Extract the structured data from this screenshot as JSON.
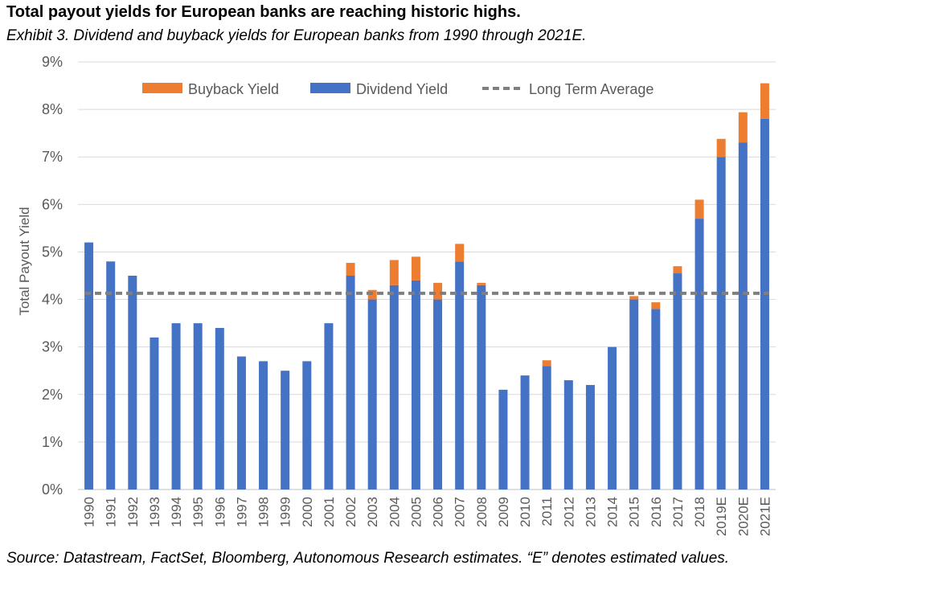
{
  "title": "Total payout yields for European banks are reaching historic highs.",
  "subtitle": "Exhibit 3. Dividend and buyback yields for European banks from 1990 through 2021E.",
  "source": "Source: Datastream, FactSet, Bloomberg, Autonomous Research estimates. “E” denotes estimated values.",
  "colors": {
    "dividend": "#4472C4",
    "buyback": "#ED7D31",
    "average": "#7F7F7F",
    "grid": "#D9D9D9",
    "text": "#595959"
  },
  "chart_data": {
    "type": "bar",
    "stacked": true,
    "ylabel": "Total Payout Yield",
    "ylim": [
      0,
      9
    ],
    "yticks": [
      "0%",
      "1%",
      "2%",
      "3%",
      "4%",
      "5%",
      "6%",
      "7%",
      "8%",
      "9%"
    ],
    "grid": true,
    "legend_position": "top",
    "categories": [
      "1990",
      "1991",
      "1992",
      "1993",
      "1994",
      "1995",
      "1996",
      "1997",
      "1998",
      "1999",
      "2000",
      "2001",
      "2002",
      "2003",
      "2004",
      "2005",
      "2006",
      "2007",
      "2008",
      "2009",
      "2010",
      "2011",
      "2012",
      "2013",
      "2014",
      "2015",
      "2016",
      "2017",
      "2018",
      "2019E",
      "2020E",
      "2021E"
    ],
    "series": [
      {
        "name": "Dividend Yield",
        "values": [
          5.2,
          4.8,
          4.5,
          3.2,
          3.5,
          3.5,
          3.4,
          2.8,
          2.7,
          2.5,
          2.7,
          3.5,
          4.5,
          4.0,
          4.3,
          4.4,
          4.0,
          4.8,
          4.3,
          2.1,
          2.4,
          2.6,
          2.3,
          2.2,
          3.0,
          4.0,
          3.8,
          4.55,
          5.7,
          7.0,
          7.3,
          7.8
        ]
      },
      {
        "name": "Buyback Yield",
        "values": [
          0,
          0,
          0,
          0,
          0,
          0,
          0,
          0,
          0,
          0,
          0,
          0,
          0.27,
          0.2,
          0.53,
          0.5,
          0.35,
          0.37,
          0.05,
          0,
          0,
          0.12,
          0,
          0,
          0,
          0.07,
          0.14,
          0.15,
          0.4,
          0.38,
          0.64,
          0.75
        ]
      }
    ],
    "reference_line": {
      "name": "Long Term Average",
      "value": 4.13
    },
    "legend": [
      "Buyback Yield",
      "Dividend Yield",
      "Long Term Average"
    ]
  }
}
